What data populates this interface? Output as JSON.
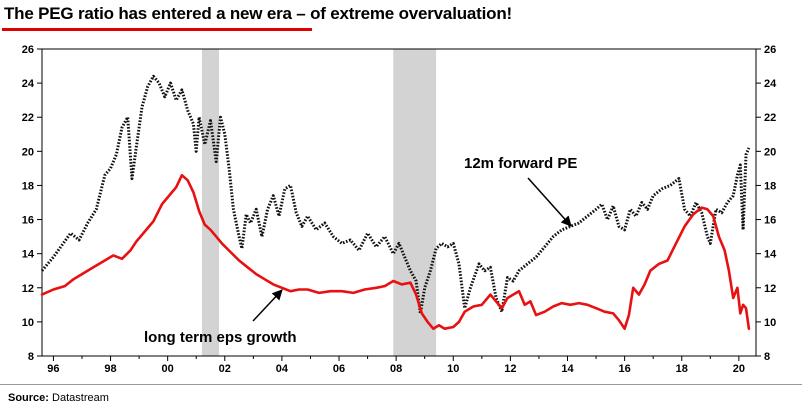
{
  "title": "The PEG ratio has entered a new era – of extreme overvaluation!",
  "source": {
    "label": "Source:",
    "value": "Datastream"
  },
  "colors": {
    "accent": "#e00000",
    "pe": "#111111",
    "eps": "#e81010",
    "recession": "#d3d3d3"
  },
  "chart_data": {
    "type": "line",
    "title": "The PEG ratio has entered a new era – of extreme overvaluation!",
    "xlabel": "",
    "ylabel": "",
    "xlim": [
      1995.6,
      2020.6
    ],
    "ylim": [
      8,
      26
    ],
    "x_ticks": [
      1996,
      1998,
      2000,
      2002,
      2004,
      2006,
      2008,
      2010,
      2012,
      2014,
      2016,
      2018,
      2020
    ],
    "x_tick_labels": [
      "96",
      "98",
      "00",
      "02",
      "04",
      "06",
      "08",
      "10",
      "12",
      "14",
      "16",
      "18",
      "20"
    ],
    "y_ticks": [
      8,
      10,
      12,
      14,
      16,
      18,
      20,
      22,
      24,
      26
    ],
    "y_tick_labels": [
      "8",
      "10",
      "12",
      "14",
      "16",
      "18",
      "20",
      "22",
      "24",
      "26"
    ],
    "grid": false,
    "recessions": [
      [
        2001.2,
        2001.8
      ],
      [
        2007.9,
        2009.4
      ]
    ],
    "annotations": [
      {
        "text": "12m forward PE",
        "series": "12m forward PE"
      },
      {
        "text": "long term eps growth",
        "series": "long term eps growth"
      }
    ],
    "series": [
      {
        "name": "12m forward PE",
        "style": "dotted",
        "points": [
          [
            1995.6,
            13.0
          ],
          [
            1996.0,
            13.8
          ],
          [
            1996.3,
            14.5
          ],
          [
            1996.6,
            15.2
          ],
          [
            1996.9,
            14.8
          ],
          [
            1997.2,
            15.8
          ],
          [
            1997.5,
            16.6
          ],
          [
            1997.8,
            18.6
          ],
          [
            1998.0,
            19.0
          ],
          [
            1998.2,
            19.8
          ],
          [
            1998.4,
            21.4
          ],
          [
            1998.6,
            22.0
          ],
          [
            1998.75,
            18.4
          ],
          [
            1998.9,
            20.2
          ],
          [
            1999.1,
            22.6
          ],
          [
            1999.3,
            23.8
          ],
          [
            1999.5,
            24.4
          ],
          [
            1999.7,
            24.0
          ],
          [
            1999.9,
            23.2
          ],
          [
            2000.1,
            24.0
          ],
          [
            2000.3,
            23.0
          ],
          [
            2000.5,
            23.6
          ],
          [
            2000.7,
            22.4
          ],
          [
            2000.9,
            21.6
          ],
          [
            2001.0,
            20.0
          ],
          [
            2001.1,
            22.0
          ],
          [
            2001.3,
            20.4
          ],
          [
            2001.5,
            21.8
          ],
          [
            2001.7,
            19.4
          ],
          [
            2001.85,
            22.0
          ],
          [
            2002.0,
            21.0
          ],
          [
            2002.15,
            19.0
          ],
          [
            2002.3,
            16.6
          ],
          [
            2002.5,
            15.0
          ],
          [
            2002.6,
            14.3
          ],
          [
            2002.75,
            16.3
          ],
          [
            2002.9,
            15.8
          ],
          [
            2003.1,
            16.6
          ],
          [
            2003.3,
            15.0
          ],
          [
            2003.5,
            16.6
          ],
          [
            2003.7,
            17.4
          ],
          [
            2003.9,
            16.2
          ],
          [
            2004.1,
            17.8
          ],
          [
            2004.3,
            18.0
          ],
          [
            2004.5,
            16.4
          ],
          [
            2004.7,
            15.6
          ],
          [
            2004.9,
            16.2
          ],
          [
            2005.2,
            15.4
          ],
          [
            2005.5,
            15.8
          ],
          [
            2005.8,
            15.0
          ],
          [
            2006.1,
            14.6
          ],
          [
            2006.4,
            14.8
          ],
          [
            2006.7,
            14.2
          ],
          [
            2007.0,
            15.2
          ],
          [
            2007.3,
            14.4
          ],
          [
            2007.6,
            15.0
          ],
          [
            2007.9,
            14.0
          ],
          [
            2008.1,
            14.6
          ],
          [
            2008.3,
            13.8
          ],
          [
            2008.5,
            13.0
          ],
          [
            2008.7,
            12.4
          ],
          [
            2008.85,
            10.5
          ],
          [
            2009.0,
            12.0
          ],
          [
            2009.2,
            13.0
          ],
          [
            2009.4,
            14.3
          ],
          [
            2009.6,
            14.6
          ],
          [
            2009.8,
            14.4
          ],
          [
            2010.0,
            14.6
          ],
          [
            2010.2,
            13.4
          ],
          [
            2010.4,
            10.8
          ],
          [
            2010.6,
            12.0
          ],
          [
            2010.9,
            13.4
          ],
          [
            2011.1,
            13.0
          ],
          [
            2011.3,
            13.2
          ],
          [
            2011.5,
            11.4
          ],
          [
            2011.7,
            10.6
          ],
          [
            2011.9,
            12.6
          ],
          [
            2012.1,
            12.4
          ],
          [
            2012.3,
            13.0
          ],
          [
            2012.6,
            13.4
          ],
          [
            2012.9,
            13.8
          ],
          [
            2013.2,
            14.4
          ],
          [
            2013.5,
            15.0
          ],
          [
            2013.8,
            15.4
          ],
          [
            2014.1,
            15.6
          ],
          [
            2014.4,
            15.8
          ],
          [
            2014.7,
            16.2
          ],
          [
            2015.0,
            16.6
          ],
          [
            2015.2,
            16.9
          ],
          [
            2015.4,
            16.0
          ],
          [
            2015.6,
            16.8
          ],
          [
            2015.8,
            15.6
          ],
          [
            2016.0,
            15.4
          ],
          [
            2016.2,
            16.6
          ],
          [
            2016.4,
            16.2
          ],
          [
            2016.6,
            17.0
          ],
          [
            2016.8,
            16.6
          ],
          [
            2017.0,
            17.4
          ],
          [
            2017.3,
            17.8
          ],
          [
            2017.6,
            18.0
          ],
          [
            2017.9,
            18.4
          ],
          [
            2018.1,
            16.6
          ],
          [
            2018.3,
            16.2
          ],
          [
            2018.5,
            17.0
          ],
          [
            2018.7,
            16.4
          ],
          [
            2018.9,
            15.0
          ],
          [
            2019.0,
            14.6
          ],
          [
            2019.2,
            16.6
          ],
          [
            2019.4,
            16.4
          ],
          [
            2019.6,
            17.0
          ],
          [
            2019.8,
            17.4
          ],
          [
            2019.95,
            18.6
          ],
          [
            2020.05,
            19.2
          ],
          [
            2020.15,
            15.4
          ],
          [
            2020.25,
            19.8
          ],
          [
            2020.35,
            20.2
          ]
        ]
      },
      {
        "name": "long term eps growth",
        "style": "solid",
        "points": [
          [
            1995.6,
            11.6
          ],
          [
            1996.0,
            11.9
          ],
          [
            1996.4,
            12.1
          ],
          [
            1996.7,
            12.5
          ],
          [
            1997.0,
            12.8
          ],
          [
            1997.4,
            13.2
          ],
          [
            1997.8,
            13.6
          ],
          [
            1998.1,
            13.9
          ],
          [
            1998.4,
            13.7
          ],
          [
            1998.7,
            14.2
          ],
          [
            1998.9,
            14.7
          ],
          [
            1999.2,
            15.3
          ],
          [
            1999.5,
            15.9
          ],
          [
            1999.8,
            16.9
          ],
          [
            2000.1,
            17.5
          ],
          [
            2000.3,
            17.9
          ],
          [
            2000.5,
            18.6
          ],
          [
            2000.7,
            18.3
          ],
          [
            2000.9,
            17.6
          ],
          [
            2001.1,
            16.5
          ],
          [
            2001.3,
            15.7
          ],
          [
            2001.5,
            15.4
          ],
          [
            2001.7,
            15.0
          ],
          [
            2001.9,
            14.6
          ],
          [
            2002.2,
            14.1
          ],
          [
            2002.5,
            13.6
          ],
          [
            2002.8,
            13.2
          ],
          [
            2003.1,
            12.8
          ],
          [
            2003.4,
            12.5
          ],
          [
            2003.7,
            12.2
          ],
          [
            2004.0,
            12.0
          ],
          [
            2004.3,
            11.8
          ],
          [
            2004.6,
            11.9
          ],
          [
            2004.9,
            11.9
          ],
          [
            2005.3,
            11.7
          ],
          [
            2005.7,
            11.8
          ],
          [
            2006.1,
            11.8
          ],
          [
            2006.5,
            11.7
          ],
          [
            2006.9,
            11.9
          ],
          [
            2007.3,
            12.0
          ],
          [
            2007.6,
            12.1
          ],
          [
            2007.9,
            12.4
          ],
          [
            2008.2,
            12.2
          ],
          [
            2008.5,
            12.3
          ],
          [
            2008.7,
            11.6
          ],
          [
            2008.9,
            10.5
          ],
          [
            2009.1,
            10.0
          ],
          [
            2009.3,
            9.6
          ],
          [
            2009.5,
            9.8
          ],
          [
            2009.7,
            9.6
          ],
          [
            2010.0,
            9.7
          ],
          [
            2010.2,
            10.0
          ],
          [
            2010.4,
            10.6
          ],
          [
            2010.7,
            10.9
          ],
          [
            2011.0,
            11.0
          ],
          [
            2011.3,
            11.6
          ],
          [
            2011.5,
            11.2
          ],
          [
            2011.7,
            10.8
          ],
          [
            2011.9,
            11.4
          ],
          [
            2012.1,
            11.6
          ],
          [
            2012.3,
            11.8
          ],
          [
            2012.5,
            11.0
          ],
          [
            2012.7,
            11.2
          ],
          [
            2012.9,
            10.4
          ],
          [
            2013.2,
            10.6
          ],
          [
            2013.5,
            10.9
          ],
          [
            2013.8,
            11.1
          ],
          [
            2014.1,
            11.0
          ],
          [
            2014.4,
            11.1
          ],
          [
            2014.7,
            11.0
          ],
          [
            2015.0,
            10.8
          ],
          [
            2015.3,
            10.6
          ],
          [
            2015.6,
            10.5
          ],
          [
            2015.8,
            10.1
          ],
          [
            2016.0,
            9.6
          ],
          [
            2016.15,
            10.4
          ],
          [
            2016.3,
            12.0
          ],
          [
            2016.5,
            11.6
          ],
          [
            2016.7,
            12.2
          ],
          [
            2016.9,
            13.0
          ],
          [
            2017.2,
            13.4
          ],
          [
            2017.5,
            13.6
          ],
          [
            2017.8,
            14.6
          ],
          [
            2018.1,
            15.6
          ],
          [
            2018.4,
            16.3
          ],
          [
            2018.7,
            16.7
          ],
          [
            2018.9,
            16.6
          ],
          [
            2019.1,
            16.2
          ],
          [
            2019.3,
            15.0
          ],
          [
            2019.5,
            14.2
          ],
          [
            2019.65,
            13.0
          ],
          [
            2019.8,
            11.4
          ],
          [
            2019.95,
            12.0
          ],
          [
            2020.05,
            10.5
          ],
          [
            2020.15,
            11.0
          ],
          [
            2020.25,
            10.8
          ],
          [
            2020.35,
            9.6
          ]
        ]
      }
    ]
  }
}
